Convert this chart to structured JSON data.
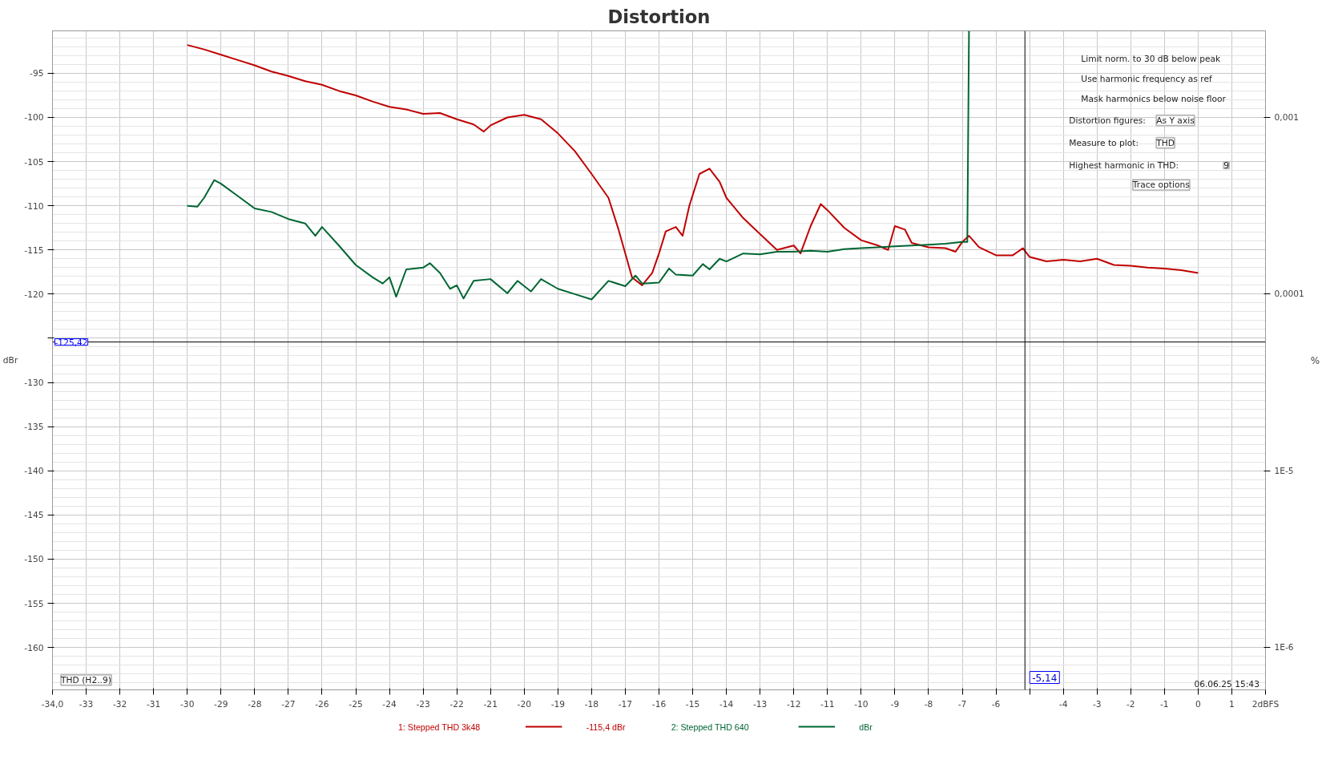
{
  "chart_data": {
    "type": "line",
    "title": "Distortion",
    "ylabel": "dBr",
    "y2label": "%",
    "xlim": [
      -34,
      2
    ],
    "ylim": [
      -164.8,
      -90.2
    ],
    "y2lim": [
      5.754e-07,
      0.00309
    ],
    "log": "y2",
    "xticks": [
      {
        "value": -34,
        "label": "-34,0"
      },
      -33,
      -32,
      -31,
      -30,
      -29,
      -28,
      -27,
      -26,
      -25,
      -24,
      -23,
      -22,
      -21,
      -20,
      -19,
      -18,
      -17,
      -16,
      -15,
      -14,
      -13,
      -12,
      -11,
      -10,
      -9,
      -8,
      -7,
      -6,
      {
        "value": -5,
        "label": null
      },
      -4,
      -3,
      -2,
      -1,
      0,
      1,
      {
        "value": 2,
        "label": "2dBFS"
      }
    ],
    "yticks": [
      -95,
      -100,
      -105,
      -110,
      -115,
      -120,
      {
        "value": -125,
        "label": null
      },
      -130,
      -135,
      -140,
      -145,
      -150,
      -155,
      -160
    ],
    "y2ticks": [
      {
        "value": 0.001,
        "label": "0,001"
      },
      {
        "value": 0.0001,
        "label": "0,0001"
      },
      {
        "value": 1e-05,
        "label": "1E-5"
      },
      {
        "value": 1e-06,
        "label": "1E-6"
      }
    ],
    "grid": true,
    "legend": "bottom",
    "ref_lines": [
      {
        "axis": "y",
        "value": -125.42,
        "label": "-125,42",
        "color": "#000000"
      },
      {
        "axis": "x",
        "value": -5.14,
        "label": "-5,14",
        "color": "#000000"
      }
    ],
    "annotations": [
      "THD (H2..9)",
      "06.06.25 15:43",
      "Limit norm. to 30 dB below peak",
      "Use harmonic frequency as ref",
      "Mask harmonics below noise floor",
      "Distortion figures:",
      "As Y axis",
      "Measure to plot:",
      "THD",
      "Highest harmonic in THD:",
      "9",
      "Trace options",
      "-115,4 dBr",
      "dBr"
    ],
    "series": [
      {
        "name": "1: Stepped THD 3k48",
        "color": "#c00000",
        "x": [
          -30,
          -29.5,
          -29,
          -28.5,
          -28,
          -27.5,
          -27,
          -26.5,
          -26,
          -25.5,
          -25,
          -24.5,
          -24,
          -23.5,
          -23,
          -22.5,
          -22,
          -21.5,
          -21.2,
          -21,
          -20.5,
          -20,
          -19.5,
          -19,
          -18.5,
          -18,
          -17.5,
          -17.2,
          -17,
          -16.8,
          -16.5,
          -16.2,
          -16,
          -15.8,
          -15.5,
          -15.3,
          -15.1,
          -14.8,
          -14.5,
          -14.2,
          -14,
          -13.5,
          -13,
          -12.5,
          -12,
          -11.8,
          -11.5,
          -11.2,
          -11,
          -10.5,
          -10,
          -9.5,
          -9.2,
          -9,
          -8.7,
          -8.5,
          -8,
          -7.5,
          -7.2,
          -7,
          -6.8,
          -6.5,
          -6,
          -5.5,
          -5.2,
          -5,
          -4.5,
          -4,
          -3.5,
          -3,
          -2.5,
          -2,
          -1.5,
          -1,
          -0.5,
          0
        ],
        "values": [
          -91.8,
          -92.3,
          -92.9,
          -93.5,
          -94.1,
          -94.8,
          -95.3,
          -95.9,
          -96.3,
          -97.0,
          -97.5,
          -98.2,
          -98.8,
          -99.1,
          -99.6,
          -99.5,
          -100.2,
          -100.8,
          -101.6,
          -100.9,
          -100.0,
          -99.7,
          -100.2,
          -101.8,
          -103.8,
          -106.4,
          -109.1,
          -112.7,
          -115.4,
          -118.1,
          -119.0,
          -117.6,
          -115.4,
          -112.9,
          -112.4,
          -113.4,
          -110.0,
          -106.4,
          -105.8,
          -107.3,
          -109.1,
          -111.4,
          -113.2,
          -115.0,
          -114.5,
          -115.4,
          -112.3,
          -109.8,
          -110.5,
          -112.5,
          -113.9,
          -114.5,
          -115.0,
          -112.3,
          -112.7,
          -114.2,
          -114.7,
          -114.8,
          -115.2,
          -114.1,
          -113.4,
          -114.7,
          -115.6,
          -115.6,
          -114.8,
          -115.8,
          -116.3,
          -116.1,
          -116.3,
          -116.0,
          -116.7,
          -116.8,
          -117.0,
          -117.1,
          -117.3,
          -117.6
        ]
      },
      {
        "name": "2: Stepped THD 640",
        "color": "#006633",
        "x": [
          -30,
          -29.7,
          -29.5,
          -29.2,
          -29,
          -28.5,
          -28,
          -27.5,
          -27,
          -26.5,
          -26.2,
          -26,
          -25.5,
          -25,
          -24.5,
          -24.2,
          -24,
          -23.8,
          -23.5,
          -23,
          -22.8,
          -22.5,
          -22.2,
          -22,
          -21.8,
          -21.5,
          -21,
          -20.5,
          -20.2,
          -19.8,
          -19.5,
          -19,
          -18.5,
          -18,
          -17.5,
          -17,
          -16.7,
          -16.5,
          -16,
          -15.7,
          -15.5,
          -15,
          -14.7,
          -14.5,
          -14.2,
          -14,
          -13.5,
          -13,
          -12.5,
          -12,
          -11.5,
          -11,
          -10.5,
          -10,
          -9.5,
          -9,
          -8.5,
          -8,
          -7.5,
          -7,
          -6.85,
          -6.8
        ],
        "values": [
          -110.0,
          -110.1,
          -109.1,
          -107.1,
          -107.5,
          -108.9,
          -110.3,
          -110.7,
          -111.5,
          -112.0,
          -113.4,
          -112.4,
          -114.5,
          -116.7,
          -118.1,
          -118.8,
          -118.1,
          -120.3,
          -117.2,
          -117.0,
          -116.5,
          -117.6,
          -119.4,
          -119.0,
          -120.5,
          -118.5,
          -118.3,
          -119.9,
          -118.5,
          -119.7,
          -118.3,
          -119.4,
          -120.0,
          -120.6,
          -118.5,
          -119.1,
          -117.9,
          -118.8,
          -118.7,
          -117.1,
          -117.8,
          -117.9,
          -116.6,
          -117.2,
          -116.0,
          -116.3,
          -115.4,
          -115.5,
          -115.2,
          -115.2,
          -115.1,
          -115.2,
          -114.9,
          -114.8,
          -114.7,
          -114.6,
          -114.5,
          -114.4,
          -114.3,
          -114.1,
          -114.1,
          -90.2
        ]
      }
    ]
  }
}
